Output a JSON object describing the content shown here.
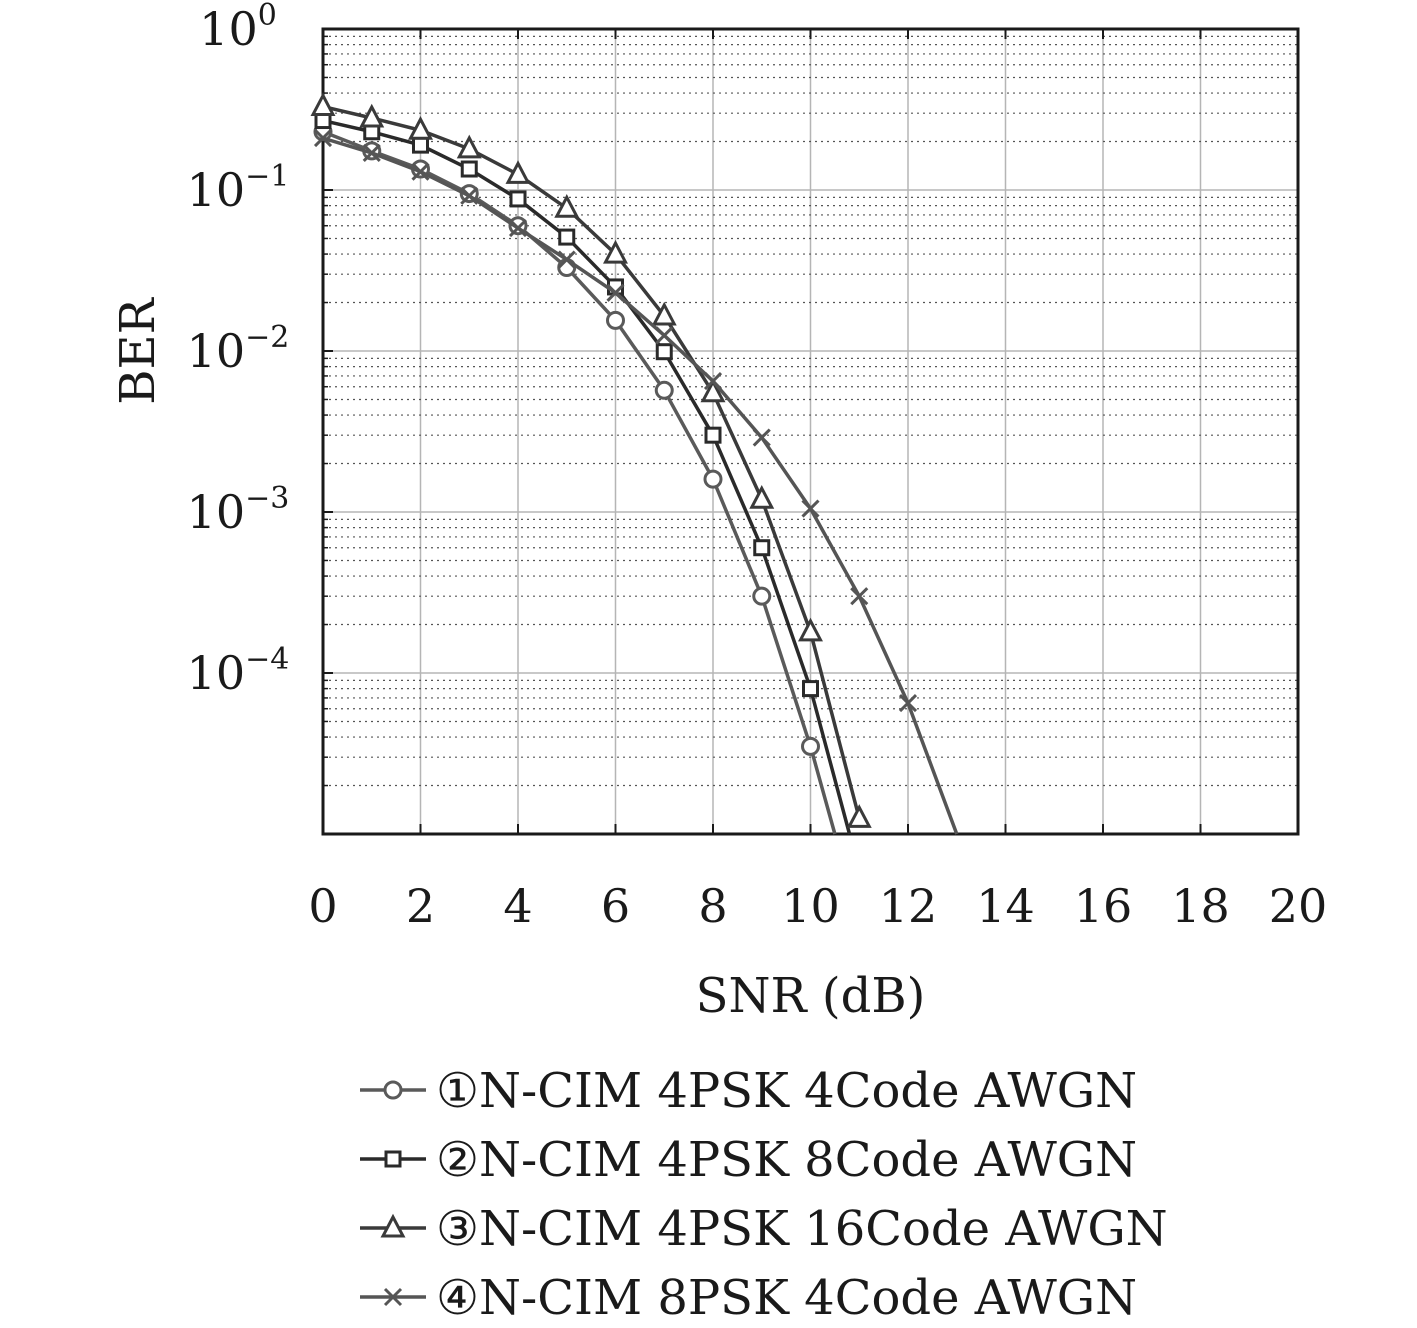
{
  "chart_data": {
    "type": "line",
    "title": "",
    "xlabel": "SNR (dB)",
    "ylabel": "BER",
    "xlim": [
      0,
      20
    ],
    "ylim": [
      1e-05,
      1
    ],
    "yscale": "log",
    "grid": true,
    "legend_position": "bottom",
    "x_ticks": [
      "0",
      "2",
      "4",
      "6",
      "8",
      "10",
      "12",
      "14",
      "16",
      "18",
      "20"
    ],
    "y_ticks": [
      {
        "base": "10",
        "exp": "0"
      },
      {
        "base": "10",
        "exp": "−1"
      },
      {
        "base": "10",
        "exp": "−2"
      },
      {
        "base": "10",
        "exp": "−3"
      },
      {
        "base": "10",
        "exp": "−4"
      }
    ],
    "series": [
      {
        "name": "①N-CIM 4PSK 4Code AWGN",
        "marker": "circle",
        "color": "#5a5a5a",
        "x": [
          0,
          1,
          2,
          3,
          4,
          5,
          6,
          7,
          8,
          9,
          10,
          10.5
        ],
        "y": [
          0.23,
          0.175,
          0.135,
          0.095,
          0.06,
          0.033,
          0.0155,
          0.0057,
          0.0016,
          0.0003,
          3.5e-05,
          1e-05
        ]
      },
      {
        "name": "②N-CIM 4PSK 8Code AWGN",
        "marker": "square",
        "color": "#2a2a2a",
        "x": [
          0,
          1,
          2,
          3,
          4,
          5,
          6,
          7,
          8,
          9,
          10,
          10.8
        ],
        "y": [
          0.27,
          0.23,
          0.19,
          0.135,
          0.088,
          0.051,
          0.025,
          0.0099,
          0.003,
          0.0006,
          8e-05,
          1e-05
        ]
      },
      {
        "name": "③N-CIM 4PSK 16Code AWGN",
        "marker": "triangle",
        "color": "#3a3a3a",
        "x": [
          0,
          1,
          2,
          3,
          4,
          5,
          6,
          7,
          8,
          9,
          10,
          11
        ],
        "y": [
          0.33,
          0.28,
          0.235,
          0.18,
          0.125,
          0.077,
          0.04,
          0.0165,
          0.0055,
          0.0012,
          0.00018,
          1.25e-05
        ]
      },
      {
        "name": "④N-CIM 8PSK 4Code AWGN",
        "marker": "cross",
        "color": "#555555",
        "x": [
          0,
          1,
          2,
          3,
          4,
          5,
          6,
          7,
          8,
          9,
          10,
          11,
          12,
          13
        ],
        "y": [
          0.21,
          0.17,
          0.13,
          0.092,
          0.058,
          0.037,
          0.023,
          0.0125,
          0.0065,
          0.0029,
          0.00105,
          0.0003,
          6.5e-05,
          1e-05
        ]
      }
    ]
  }
}
